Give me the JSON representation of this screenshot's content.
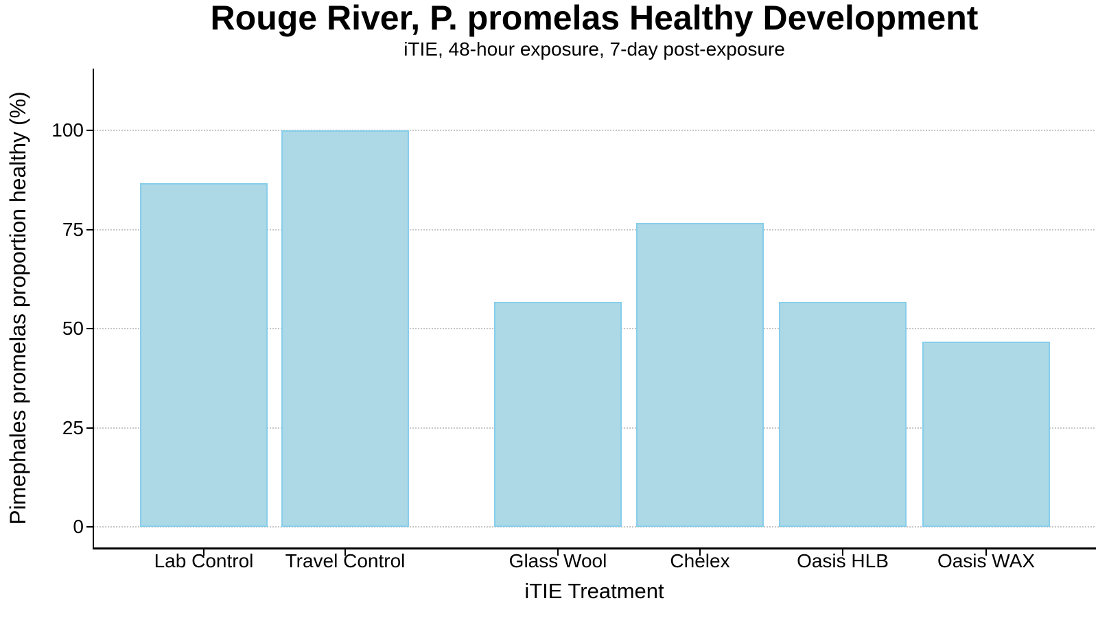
{
  "chart_data": {
    "type": "bar",
    "title": "Rouge River, P. promelas Healthy Development",
    "subtitle": "iTIE, 48-hour exposure, 7-day post-exposure",
    "xlabel": "iTIE Treatment",
    "ylabel": "Pimephales promelas proportion healthy (%)",
    "categories": [
      "Lab Control",
      "Travel Control",
      "Glass Wool",
      "Chelex",
      "Oasis HLB",
      "Oasis WAX"
    ],
    "values": [
      86.7,
      100,
      56.7,
      76.7,
      56.7,
      46.7
    ],
    "yticks": [
      0,
      25,
      50,
      75,
      100
    ],
    "ylim": [
      0,
      115
    ],
    "grid": "horizontal-dotted",
    "legend": "none",
    "group_gap_after_category": "Travel Control",
    "colors": {
      "bar_fill": "#ADD8E6",
      "bar_border": "#87CEEB",
      "gridline": "#C6C6C6",
      "axis": "#000000",
      "text": "#000000",
      "background": "#FFFFFF"
    }
  }
}
